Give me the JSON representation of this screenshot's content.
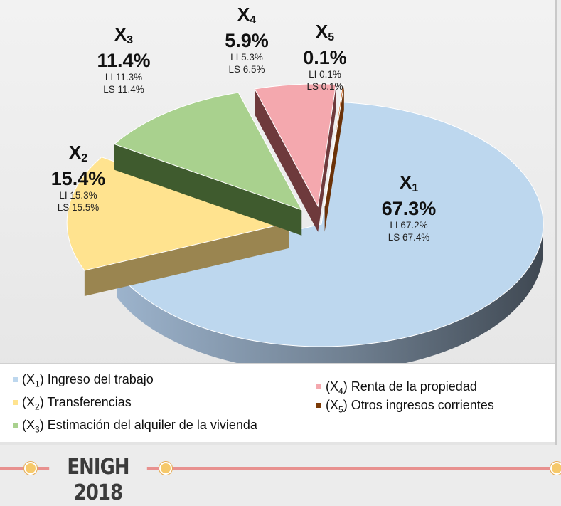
{
  "chart_data": {
    "type": "pie",
    "title": "",
    "slices": [
      {
        "code": "X",
        "sub": "1",
        "name": "Ingreso del trabajo",
        "value": 67.3,
        "pct_label": "67.3%",
        "li": "LI  67.2%",
        "ls": "LS 67.4%",
        "color": "#bdd7ee",
        "side_color": "#8ea8c2",
        "exploded": false
      },
      {
        "code": "X",
        "sub": "2",
        "name": "Transferencias",
        "value": 15.4,
        "pct_label": "15.4%",
        "li": "LI  15.3%",
        "ls": "LS 15.5%",
        "color": "#ffe38f",
        "side_color": "#9a8550",
        "exploded": true
      },
      {
        "code": "X",
        "sub": "3",
        "name": "Estimación del alquiler de la vivienda",
        "value": 11.4,
        "pct_label": "11.4%",
        "li": "LI  11.3%",
        "ls": "LS 11.4%",
        "color": "#a9d18e",
        "side_color": "#3f5b2e",
        "exploded": true
      },
      {
        "code": "X",
        "sub": "4",
        "name": "Renta de la propiedad",
        "value": 5.9,
        "pct_label": "5.9%",
        "li": "LI  5.3%",
        "ls": "LS 6.5%",
        "color": "#f4a8ae",
        "side_color": "#6e3a3c",
        "exploded": true
      },
      {
        "code": "X",
        "sub": "5",
        "name": "Otros ingresos corrientes",
        "value": 0.1,
        "pct_label": "0.1%",
        "li": "LI  0.1%",
        "ls": "LS 0.1%",
        "color": "#c55a11",
        "side_color": "#6b3208",
        "exploded": true
      }
    ],
    "legend_position": "bottom"
  },
  "footer": {
    "title": "ENIGH 2018"
  }
}
